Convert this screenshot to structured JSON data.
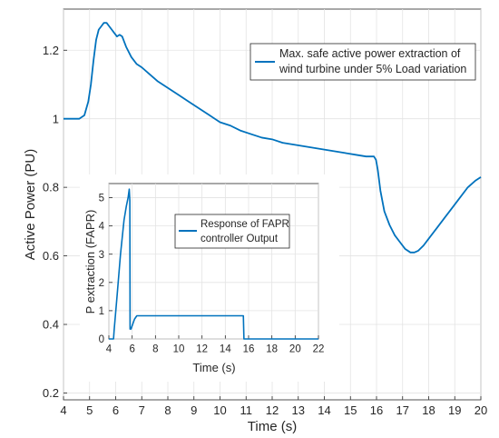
{
  "chart_data": [
    {
      "type": "line",
      "xlabel": "Time (s)",
      "ylabel": "Active Power (PU)",
      "xlim": [
        4,
        20
      ],
      "ylim": [
        0.18,
        1.32
      ],
      "xticks": [
        "4",
        "5",
        "6",
        "7",
        "8",
        "9",
        "10",
        "11",
        "12",
        "13",
        "14",
        "15",
        "16",
        "17",
        "18",
        "19",
        "20"
      ],
      "yticks": [
        "0.2",
        "0.4",
        "0.6",
        "0.8",
        "1",
        "1.2"
      ],
      "grid": true,
      "legend_position": "top-right",
      "series": [
        {
          "name": "Max. safe active power extraction of wind turbine under 5% Load variation",
          "color": "#0072BD",
          "x": [
            4.0,
            4.3,
            4.6,
            4.8,
            4.95,
            5.05,
            5.15,
            5.25,
            5.35,
            5.45,
            5.55,
            5.65,
            5.75,
            5.85,
            5.95,
            6.05,
            6.15,
            6.25,
            6.4,
            6.6,
            6.8,
            7.0,
            7.3,
            7.6,
            8.0,
            8.4,
            8.8,
            9.2,
            9.6,
            10.0,
            10.4,
            10.8,
            11.2,
            11.6,
            12.0,
            12.4,
            12.8,
            13.2,
            13.6,
            14.0,
            14.4,
            14.8,
            15.2,
            15.6,
            15.9,
            15.98,
            16.05,
            16.15,
            16.3,
            16.5,
            16.7,
            16.9,
            17.1,
            17.3,
            17.45,
            17.6,
            17.8,
            18.0,
            18.3,
            18.6,
            18.9,
            19.2,
            19.5,
            19.8,
            20.0
          ],
          "y": [
            1.0,
            1.0,
            1.0,
            1.01,
            1.05,
            1.1,
            1.17,
            1.23,
            1.26,
            1.27,
            1.28,
            1.28,
            1.27,
            1.26,
            1.25,
            1.24,
            1.245,
            1.24,
            1.21,
            1.18,
            1.16,
            1.15,
            1.13,
            1.11,
            1.09,
            1.07,
            1.05,
            1.03,
            1.01,
            0.99,
            0.98,
            0.965,
            0.955,
            0.945,
            0.94,
            0.93,
            0.925,
            0.92,
            0.915,
            0.91,
            0.905,
            0.9,
            0.895,
            0.89,
            0.89,
            0.88,
            0.85,
            0.79,
            0.73,
            0.69,
            0.66,
            0.64,
            0.62,
            0.61,
            0.61,
            0.615,
            0.63,
            0.65,
            0.68,
            0.71,
            0.74,
            0.77,
            0.8,
            0.82,
            0.83
          ]
        }
      ]
    },
    {
      "type": "line",
      "xlabel": "Time (s)",
      "ylabel": "P extraction (FAPR)",
      "xlim": [
        4,
        22
      ],
      "ylim": [
        0,
        5.5
      ],
      "xticks": [
        "4",
        "6",
        "8",
        "10",
        "12",
        "14",
        "16",
        "18",
        "20",
        "22"
      ],
      "yticks": [
        "0",
        "1",
        "2",
        "3",
        "4",
        "5"
      ],
      "grid": true,
      "legend_position": "top-right",
      "series": [
        {
          "name": "Response of FAPR controller Output",
          "color": "#0072BD",
          "x": [
            4.0,
            4.4,
            4.45,
            4.7,
            5.0,
            5.3,
            5.5,
            5.65,
            5.75,
            5.8,
            5.82,
            5.9,
            6.2,
            6.4,
            7,
            10,
            14,
            15.5,
            15.55,
            15.6,
            16,
            20,
            22
          ],
          "y": [
            0,
            0,
            0.3,
            1.5,
            3.0,
            4.2,
            4.7,
            5.0,
            5.3,
            4.9,
            0.35,
            0.35,
            0.7,
            0.82,
            0.82,
            0.82,
            0.82,
            0.82,
            0.82,
            0,
            0,
            0,
            0
          ]
        }
      ]
    }
  ]
}
